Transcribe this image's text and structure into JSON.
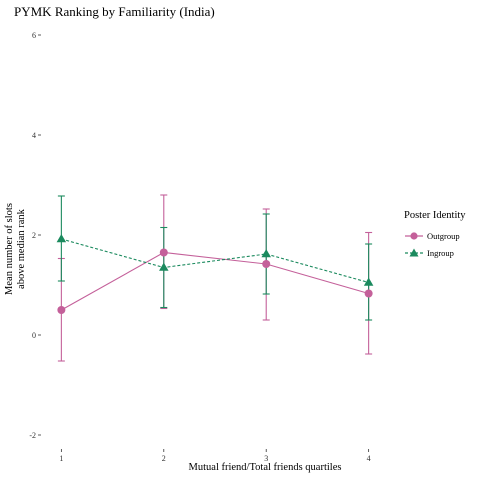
{
  "chart_data": {
    "type": "line",
    "title": "PYMK Ranking by Familiarity (India)",
    "xlabel": "Mutual friend/Total friends quartiles",
    "ylabel": [
      "Mean number of slots",
      "above median rank"
    ],
    "categories": [
      "1",
      "2",
      "3",
      "4"
    ],
    "xlim": [
      0.85,
      4.15
    ],
    "ylim": [
      -2.1,
      6.1
    ],
    "yticks": [
      -2,
      0,
      2,
      4,
      6
    ],
    "yticklabels": [
      "-2",
      "0",
      "2",
      "4",
      "6"
    ],
    "grid": false,
    "legend": {
      "title": "Poster Identity",
      "placement": "right"
    },
    "series": [
      {
        "name": "Outgroup",
        "color": "#c4609a",
        "marker": "circle",
        "linestyle": "solid",
        "values": [
          0.5,
          1.65,
          1.42,
          0.83
        ],
        "error_low": [
          -0.52,
          0.53,
          0.3,
          -0.38
        ],
        "error_high": [
          1.53,
          2.8,
          2.52,
          2.05
        ]
      },
      {
        "name": "Ingroup",
        "color": "#1b8a5e",
        "marker": "triangle",
        "linestyle": "dashed",
        "values": [
          1.92,
          1.35,
          1.62,
          1.05
        ],
        "error_low": [
          1.08,
          0.55,
          0.82,
          0.3
        ],
        "error_high": [
          2.78,
          2.15,
          2.42,
          1.82
        ]
      }
    ]
  }
}
